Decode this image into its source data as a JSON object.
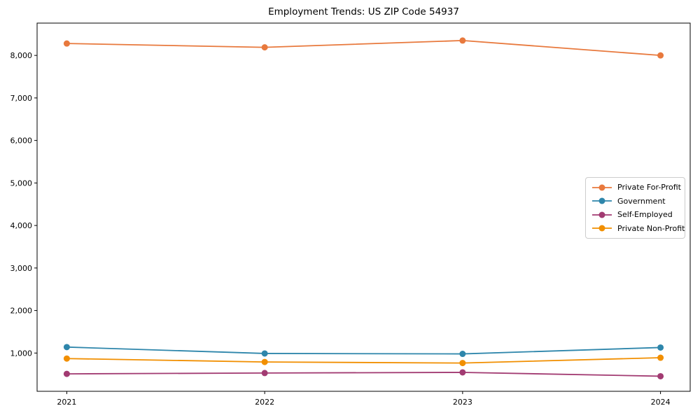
{
  "chart_data": {
    "type": "line",
    "title": "Employment Trends: US ZIP Code 54937",
    "xlabel": "",
    "ylabel": "",
    "x": [
      2021,
      2022,
      2023,
      2024
    ],
    "xtick_labels": [
      "2021",
      "2022",
      "2023",
      "2024"
    ],
    "yticks": [
      1000,
      2000,
      3000,
      4000,
      5000,
      6000,
      7000,
      8000
    ],
    "ytick_labels": [
      "1,000",
      "2,000",
      "3,000",
      "4,000",
      "5,000",
      "6,000",
      "7,000",
      "8,000"
    ],
    "xlim": [
      2020.85,
      2024.15
    ],
    "ylim": [
      100,
      8760
    ],
    "grid": false,
    "legend_position": "center right",
    "series": [
      {
        "name": "Private For-Profit",
        "color": "#E8793D",
        "values": [
          8280,
          8190,
          8350,
          8000
        ]
      },
      {
        "name": "Government",
        "color": "#2E86AB",
        "values": [
          1140,
          990,
          980,
          1130
        ]
      },
      {
        "name": "Self-Employed",
        "color": "#A23B72",
        "values": [
          510,
          530,
          545,
          455
        ]
      },
      {
        "name": "Private Non-Profit",
        "color": "#F18F01",
        "values": [
          870,
          790,
          765,
          890
        ]
      }
    ]
  }
}
